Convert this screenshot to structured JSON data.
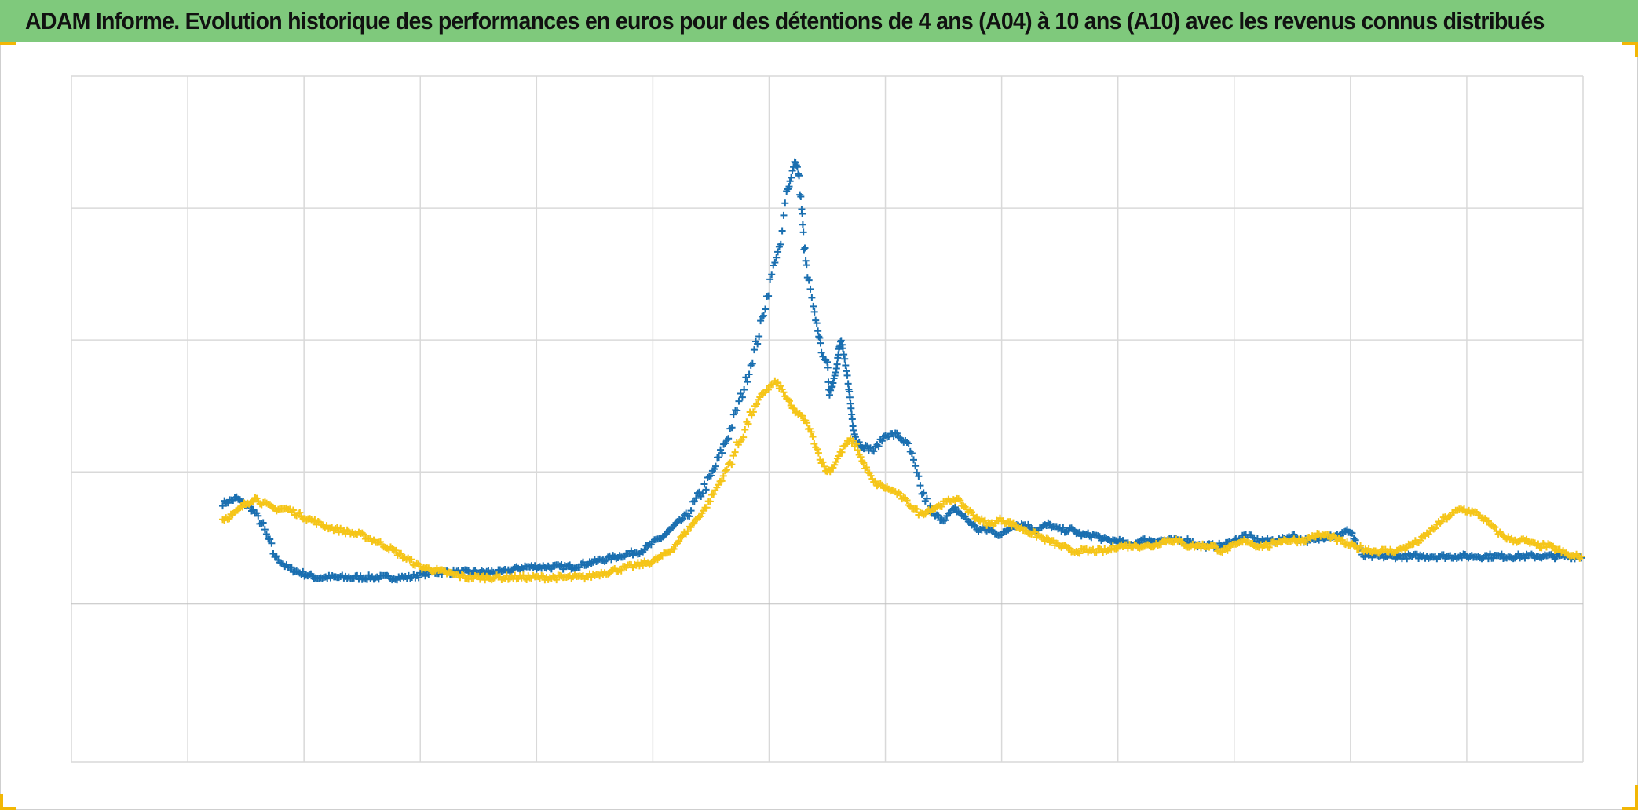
{
  "title": "ADAM Informe. Evolution historique des performances en euros pour des détentions de 4 ans (A04) à 10 ans (A10) avec les revenus connus distribués",
  "colors": {
    "header_bg": "#7fc97c",
    "series_blue": "#1a6fb0",
    "series_yellow": "#f5c518",
    "gridline": "#d9d9d9",
    "baseline": "#bfbfbf",
    "corner_marks": "#f2b705"
  },
  "chart_data": {
    "type": "scatter",
    "marker": "plus",
    "grid": true,
    "xlim": [
      0,
      13
    ],
    "ylim": [
      -30,
      100
    ],
    "x_gridlines": [
      0,
      1,
      2,
      3,
      4,
      5,
      6,
      7,
      8,
      9,
      10,
      11,
      12,
      13
    ],
    "y_gridlines": [
      -30,
      0,
      25,
      50,
      75,
      100
    ],
    "baseline": 0,
    "tick_labels_visible": false,
    "legend": "none",
    "series": [
      {
        "color": "#1a6fb0",
        "points": [
          [
            1.3,
            19
          ],
          [
            1.42,
            20
          ],
          [
            1.55,
            18
          ],
          [
            1.62,
            16
          ],
          [
            1.75,
            9
          ],
          [
            1.85,
            7
          ],
          [
            1.95,
            6
          ],
          [
            2.1,
            5
          ],
          [
            2.3,
            5
          ],
          [
            2.5,
            5
          ],
          [
            2.7,
            5
          ],
          [
            2.9,
            5
          ],
          [
            3.1,
            6
          ],
          [
            3.3,
            6
          ],
          [
            3.5,
            6
          ],
          [
            3.7,
            6
          ],
          [
            3.9,
            7
          ],
          [
            4.1,
            7
          ],
          [
            4.3,
            7
          ],
          [
            4.5,
            8
          ],
          [
            4.7,
            9
          ],
          [
            4.9,
            10
          ],
          [
            5.1,
            13
          ],
          [
            5.3,
            17
          ],
          [
            5.5,
            24
          ],
          [
            5.65,
            32
          ],
          [
            5.8,
            42
          ],
          [
            5.9,
            50
          ],
          [
            5.98,
            58
          ],
          [
            6.05,
            65
          ],
          [
            6.1,
            68
          ],
          [
            6.15,
            78
          ],
          [
            6.18,
            80
          ],
          [
            6.22,
            84
          ],
          [
            6.25,
            82
          ],
          [
            6.28,
            75
          ],
          [
            6.3,
            68
          ],
          [
            6.33,
            62
          ],
          [
            6.38,
            56
          ],
          [
            6.42,
            52
          ],
          [
            6.45,
            48
          ],
          [
            6.5,
            45
          ],
          [
            6.52,
            40
          ],
          [
            6.55,
            42
          ],
          [
            6.58,
            45
          ],
          [
            6.6,
            48
          ],
          [
            6.62,
            50
          ],
          [
            6.65,
            46
          ],
          [
            6.68,
            42
          ],
          [
            6.7,
            38
          ],
          [
            6.72,
            34
          ],
          [
            6.75,
            31
          ],
          [
            6.8,
            30
          ],
          [
            6.9,
            29
          ],
          [
            7.0,
            32
          ],
          [
            7.1,
            32
          ],
          [
            7.2,
            30
          ],
          [
            7.3,
            22
          ],
          [
            7.4,
            17
          ],
          [
            7.5,
            16
          ],
          [
            7.6,
            18
          ],
          [
            7.7,
            16
          ],
          [
            7.8,
            14
          ],
          [
            7.9,
            14
          ],
          [
            8.0,
            13
          ],
          [
            8.1,
            15
          ],
          [
            8.2,
            15
          ],
          [
            8.3,
            14
          ],
          [
            8.4,
            15
          ],
          [
            8.5,
            14
          ],
          [
            8.6,
            14
          ],
          [
            8.7,
            13
          ],
          [
            8.8,
            13
          ],
          [
            8.9,
            12
          ],
          [
            9.0,
            12
          ],
          [
            9.1,
            11
          ],
          [
            9.2,
            12
          ],
          [
            9.3,
            12
          ],
          [
            9.4,
            12
          ],
          [
            9.5,
            12
          ],
          [
            9.6,
            12
          ],
          [
            9.7,
            11
          ],
          [
            9.8,
            11
          ],
          [
            9.9,
            11
          ],
          [
            10.0,
            12
          ],
          [
            10.1,
            13
          ],
          [
            10.2,
            12
          ],
          [
            10.3,
            12
          ],
          [
            10.4,
            12
          ],
          [
            10.5,
            13
          ],
          [
            10.6,
            12
          ],
          [
            10.7,
            12
          ],
          [
            10.8,
            13
          ],
          [
            10.9,
            13
          ],
          [
            11.0,
            14
          ],
          [
            11.1,
            9
          ],
          [
            11.3,
            9
          ],
          [
            11.5,
            9
          ],
          [
            11.7,
            9
          ],
          [
            11.9,
            9
          ],
          [
            12.1,
            9
          ],
          [
            12.3,
            9
          ],
          [
            12.5,
            9
          ],
          [
            12.7,
            9
          ],
          [
            12.9,
            9
          ],
          [
            13.0,
            9
          ]
        ]
      },
      {
        "color": "#f5c518",
        "points": [
          [
            1.3,
            16
          ],
          [
            1.4,
            17
          ],
          [
            1.5,
            19
          ],
          [
            1.58,
            20
          ],
          [
            1.65,
            19
          ],
          [
            1.75,
            18
          ],
          [
            1.85,
            18
          ],
          [
            1.95,
            17
          ],
          [
            2.05,
            16
          ],
          [
            2.15,
            15
          ],
          [
            2.3,
            14
          ],
          [
            2.5,
            13
          ],
          [
            2.7,
            11
          ],
          [
            2.85,
            9
          ],
          [
            3.0,
            7
          ],
          [
            3.2,
            6
          ],
          [
            3.4,
            5
          ],
          [
            3.6,
            5
          ],
          [
            3.8,
            5
          ],
          [
            4.0,
            5
          ],
          [
            4.2,
            5
          ],
          [
            4.4,
            5
          ],
          [
            4.6,
            6
          ],
          [
            4.8,
            7
          ],
          [
            5.0,
            8
          ],
          [
            5.15,
            10
          ],
          [
            5.3,
            14
          ],
          [
            5.45,
            18
          ],
          [
            5.55,
            22
          ],
          [
            5.65,
            26
          ],
          [
            5.75,
            31
          ],
          [
            5.85,
            36
          ],
          [
            5.95,
            40
          ],
          [
            6.05,
            42
          ],
          [
            6.1,
            41
          ],
          [
            6.15,
            39
          ],
          [
            6.2,
            37
          ],
          [
            6.25,
            36
          ],
          [
            6.3,
            35
          ],
          [
            6.35,
            33
          ],
          [
            6.4,
            30
          ],
          [
            6.45,
            27
          ],
          [
            6.5,
            25
          ],
          [
            6.55,
            26
          ],
          [
            6.6,
            28
          ],
          [
            6.65,
            30
          ],
          [
            6.7,
            31
          ],
          [
            6.75,
            30
          ],
          [
            6.8,
            27
          ],
          [
            6.85,
            25
          ],
          [
            6.9,
            23
          ],
          [
            7.0,
            22
          ],
          [
            7.1,
            21
          ],
          [
            7.2,
            19
          ],
          [
            7.3,
            17
          ],
          [
            7.4,
            18
          ],
          [
            7.5,
            19
          ],
          [
            7.6,
            20
          ],
          [
            7.7,
            18
          ],
          [
            7.8,
            16
          ],
          [
            7.9,
            15
          ],
          [
            8.0,
            16
          ],
          [
            8.1,
            15
          ],
          [
            8.2,
            14
          ],
          [
            8.3,
            13
          ],
          [
            8.4,
            12
          ],
          [
            8.5,
            11
          ],
          [
            8.6,
            10
          ],
          [
            8.7,
            10
          ],
          [
            8.8,
            10
          ],
          [
            8.9,
            10
          ],
          [
            9.0,
            11
          ],
          [
            9.1,
            11
          ],
          [
            9.2,
            11
          ],
          [
            9.3,
            11
          ],
          [
            9.4,
            12
          ],
          [
            9.5,
            12
          ],
          [
            9.6,
            11
          ],
          [
            9.7,
            11
          ],
          [
            9.8,
            11
          ],
          [
            9.9,
            10
          ],
          [
            10.0,
            11
          ],
          [
            10.1,
            12
          ],
          [
            10.2,
            11
          ],
          [
            10.3,
            11
          ],
          [
            10.4,
            12
          ],
          [
            10.5,
            12
          ],
          [
            10.6,
            12
          ],
          [
            10.7,
            13
          ],
          [
            10.8,
            13
          ],
          [
            10.9,
            12
          ],
          [
            11.0,
            11
          ],
          [
            11.2,
            10
          ],
          [
            11.4,
            10
          ],
          [
            11.6,
            12
          ],
          [
            11.8,
            16
          ],
          [
            11.95,
            18
          ],
          [
            12.1,
            17
          ],
          [
            12.2,
            15
          ],
          [
            12.3,
            13
          ],
          [
            12.4,
            12
          ],
          [
            12.5,
            12
          ],
          [
            12.6,
            11
          ],
          [
            12.7,
            11
          ],
          [
            12.8,
            10
          ],
          [
            12.9,
            9
          ],
          [
            13.0,
            9
          ]
        ]
      }
    ]
  }
}
